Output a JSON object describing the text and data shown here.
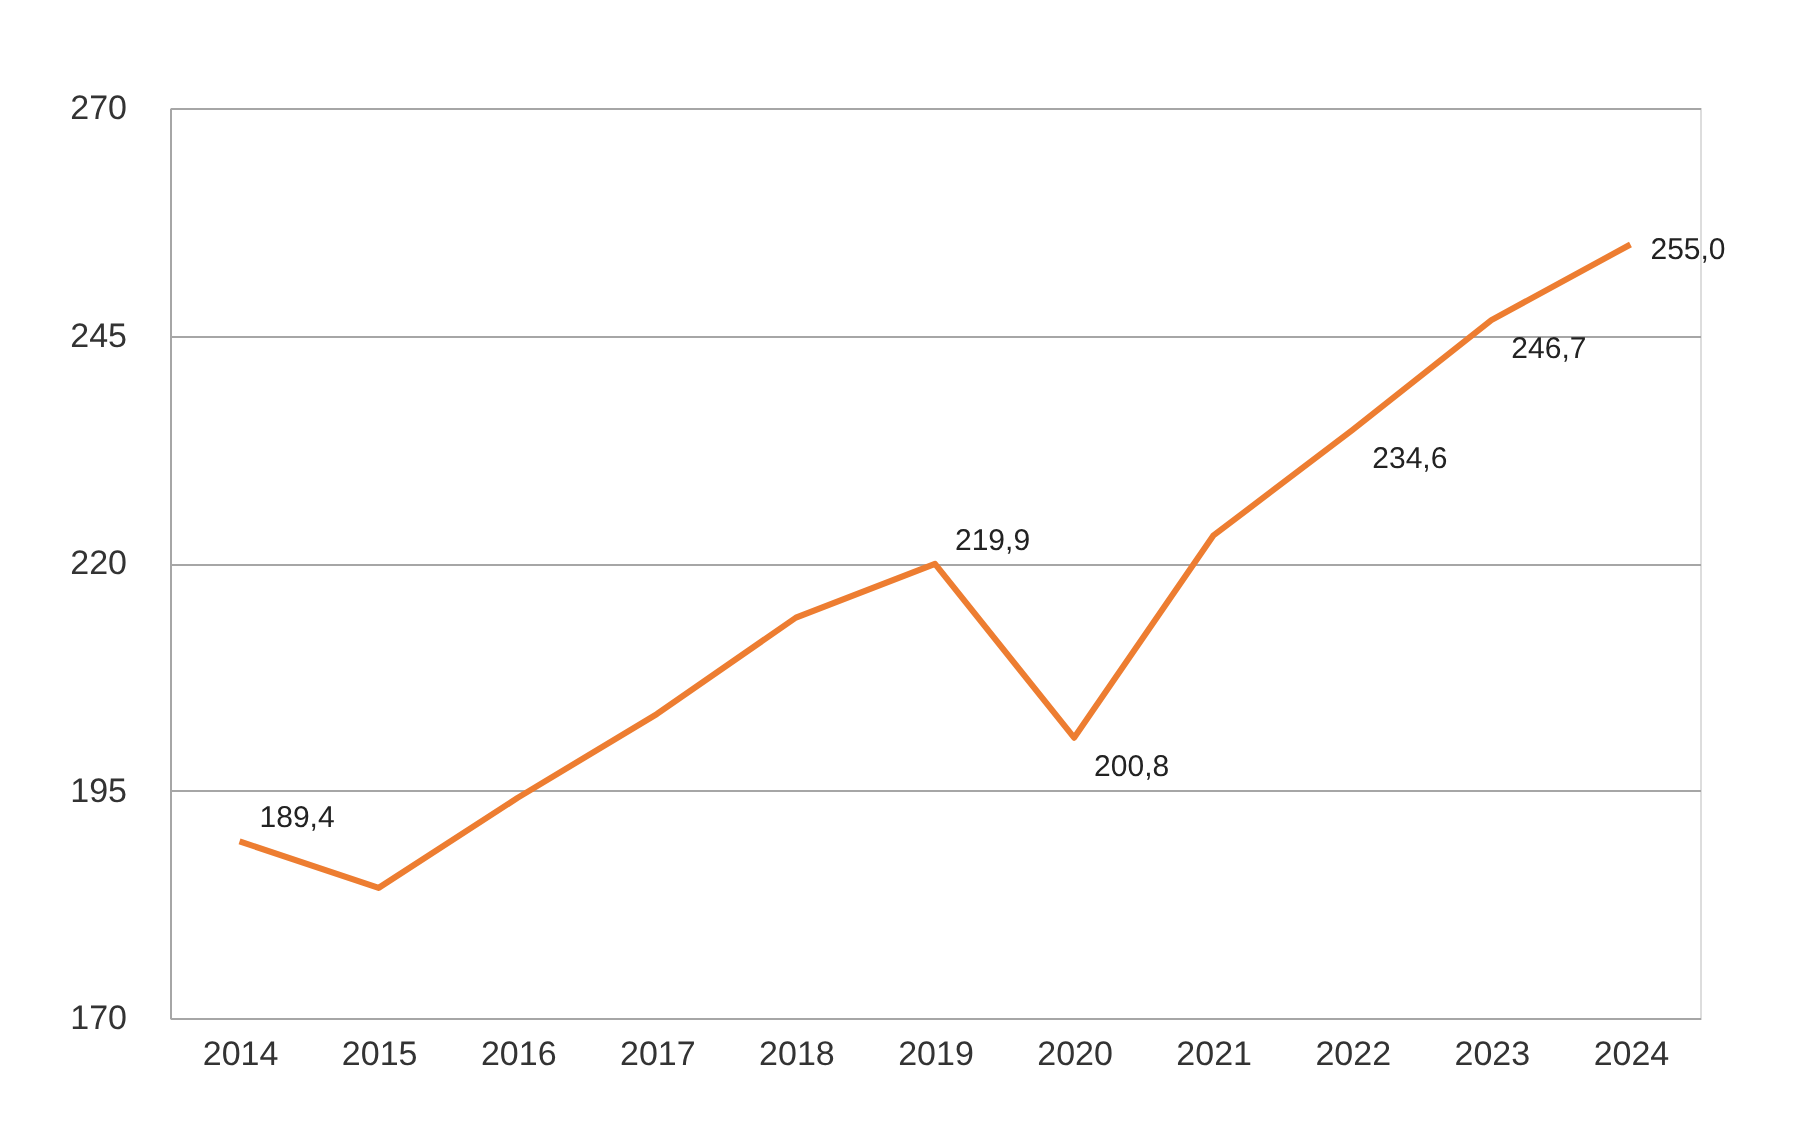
{
  "chart_data": {
    "type": "line",
    "categories": [
      "2014",
      "2015",
      "2016",
      "2017",
      "2018",
      "2019",
      "2020",
      "2021",
      "2022",
      "2023",
      "2024"
    ],
    "series": [
      {
        "color": "#ed7d31",
        "values": [
          189.4,
          184.3,
          194.2,
          203.4,
          214.0,
          219.9,
          200.8,
          223.0,
          234.6,
          246.7,
          255.0
        ],
        "value_labels": [
          "189,4",
          null,
          null,
          null,
          null,
          "219,9",
          "200,8",
          null,
          "234,6",
          "246,7",
          "255,0"
        ]
      }
    ],
    "ylim": [
      170,
      270
    ],
    "yticks": [
      170,
      195,
      220,
      245,
      270
    ],
    "grid": "y",
    "marker": "none",
    "line_style": "solid"
  }
}
